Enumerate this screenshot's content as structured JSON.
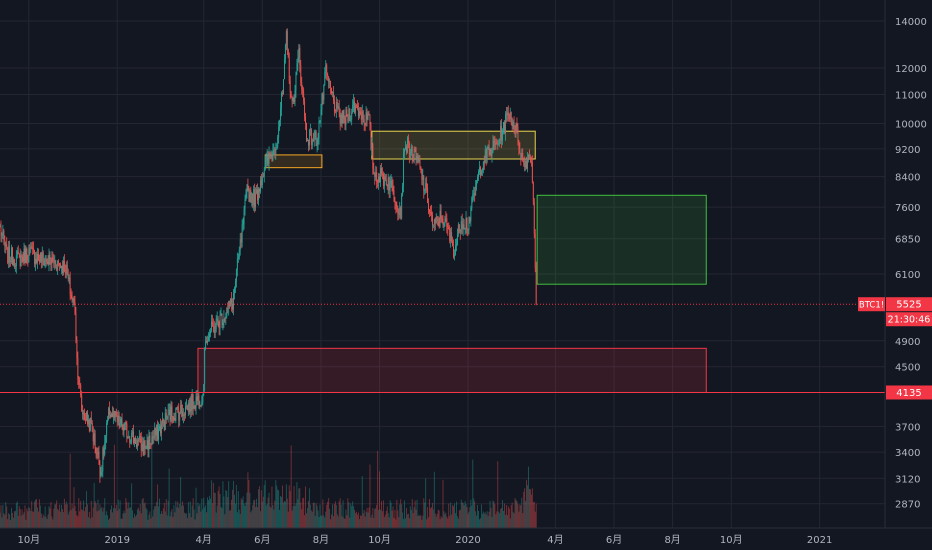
{
  "chart_data": {
    "type": "candlestick",
    "symbol_label": "BTC1!",
    "ylim_log": [
      2650,
      15000
    ],
    "y_ticks": [
      14000,
      12000,
      11000,
      10000,
      9200,
      8400,
      7600,
      6850,
      6100,
      4900,
      4500,
      4135,
      3700,
      3400,
      3120,
      2870
    ],
    "y_tick_labels": [
      "14000",
      "12000",
      "11000",
      "10000",
      "9200",
      "8400",
      "7600",
      "6850",
      "6100",
      "4900",
      "4500",
      "4135",
      "3700",
      "3400",
      "3120",
      "2870"
    ],
    "x_range": [
      "2018-09-01",
      "2021-03-10"
    ],
    "x_ticks": [
      {
        "date": "2018-10-01",
        "label": "10月"
      },
      {
        "date": "2019-01-01",
        "label": "2019"
      },
      {
        "date": "2019-04-01",
        "label": "4月"
      },
      {
        "date": "2019-06-01",
        "label": "6月"
      },
      {
        "date": "2019-08-01",
        "label": "8月"
      },
      {
        "date": "2019-10-01",
        "label": "10月"
      },
      {
        "date": "2020-01-01",
        "label": "2020"
      },
      {
        "date": "2020-04-01",
        "label": "4月"
      },
      {
        "date": "2020-06-01",
        "label": "6月"
      },
      {
        "date": "2020-08-01",
        "label": "8月"
      },
      {
        "date": "2020-10-01",
        "label": "10月"
      },
      {
        "date": "2021-01-01",
        "label": "2021"
      }
    ],
    "price_path": [
      [
        "2018-09-01",
        7100
      ],
      [
        "2018-09-08",
        6500
      ],
      [
        "2018-09-20",
        6400
      ],
      [
        "2018-10-01",
        6550
      ],
      [
        "2018-10-15",
        6400
      ],
      [
        "2018-10-28",
        6350
      ],
      [
        "2018-11-08",
        6250
      ],
      [
        "2018-11-14",
        5700
      ],
      [
        "2018-11-18",
        5450
      ],
      [
        "2018-11-20",
        4600
      ],
      [
        "2018-11-25",
        3900
      ],
      [
        "2018-12-05",
        3700
      ],
      [
        "2018-12-15",
        3200
      ],
      [
        "2018-12-24",
        3900
      ],
      [
        "2019-01-01",
        3750
      ],
      [
        "2019-01-10",
        3650
      ],
      [
        "2019-01-28",
        3450
      ],
      [
        "2019-02-10",
        3600
      ],
      [
        "2019-02-24",
        3850
      ],
      [
        "2019-03-10",
        3900
      ],
      [
        "2019-03-31",
        4100
      ],
      [
        "2019-04-03",
        4950
      ],
      [
        "2019-04-20",
        5300
      ],
      [
        "2019-05-01",
        5550
      ],
      [
        "2019-05-11",
        7000
      ],
      [
        "2019-05-16",
        8000
      ],
      [
        "2019-05-25",
        7800
      ],
      [
        "2019-06-01",
        8500
      ],
      [
        "2019-06-15",
        9300
      ],
      [
        "2019-06-22",
        11000
      ],
      [
        "2019-06-26",
        13200
      ],
      [
        "2019-07-02",
        10500
      ],
      [
        "2019-07-09",
        12600
      ],
      [
        "2019-07-17",
        9600
      ],
      [
        "2019-07-28",
        9500
      ],
      [
        "2019-08-06",
        11800
      ],
      [
        "2019-08-18",
        10300
      ],
      [
        "2019-08-25",
        10100
      ],
      [
        "2019-09-05",
        10600
      ],
      [
        "2019-09-20",
        10050
      ],
      [
        "2019-09-25",
        8500
      ],
      [
        "2019-10-10",
        8300
      ],
      [
        "2019-10-23",
        7500
      ],
      [
        "2019-10-27",
        9400
      ],
      [
        "2019-11-10",
        8800
      ],
      [
        "2019-11-20",
        7800
      ],
      [
        "2019-11-26",
        7100
      ],
      [
        "2019-12-05",
        7400
      ],
      [
        "2019-12-18",
        6600
      ],
      [
        "2019-12-25",
        7300
      ],
      [
        "2020-01-01",
        7200
      ],
      [
        "2020-01-15",
        8800
      ],
      [
        "2020-02-01",
        9400
      ],
      [
        "2020-02-13",
        10400
      ],
      [
        "2020-02-20",
        9800
      ],
      [
        "2020-02-28",
        8700
      ],
      [
        "2020-03-06",
        9100
      ],
      [
        "2020-03-09",
        7900
      ],
      [
        "2020-03-12",
        5525
      ]
    ],
    "horizontal_lines": [
      {
        "label": "5525",
        "value": 5525,
        "color": "#f23645",
        "style": "dotted"
      },
      {
        "label": "4135",
        "value": 4135,
        "color": "#f23645",
        "style": "solid"
      }
    ],
    "countdown": "21:30:46",
    "zones": [
      {
        "name": "orange-zone",
        "x0": "2019-06-04",
        "x1": "2019-08-02",
        "y0": 8650,
        "y1": 9020,
        "color": "#f5a623"
      },
      {
        "name": "yellow-zone",
        "x0": "2019-09-23",
        "x1": "2020-03-11",
        "y0": 8900,
        "y1": 9750,
        "color": "#e8d44d"
      },
      {
        "name": "green-zone",
        "x0": "2020-03-13",
        "x1": "2020-09-05",
        "y0": 5900,
        "y1": 7900,
        "color": "#3fbf3f"
      },
      {
        "name": "red-zone",
        "x0": "2019-03-26",
        "x1": "2020-09-05",
        "y0": 4135,
        "y1": 4780,
        "color": "#f23645"
      }
    ],
    "colors": {
      "up": "#26a69a",
      "down": "#ef5350",
      "background": "#131722",
      "grid": "#242733"
    }
  }
}
